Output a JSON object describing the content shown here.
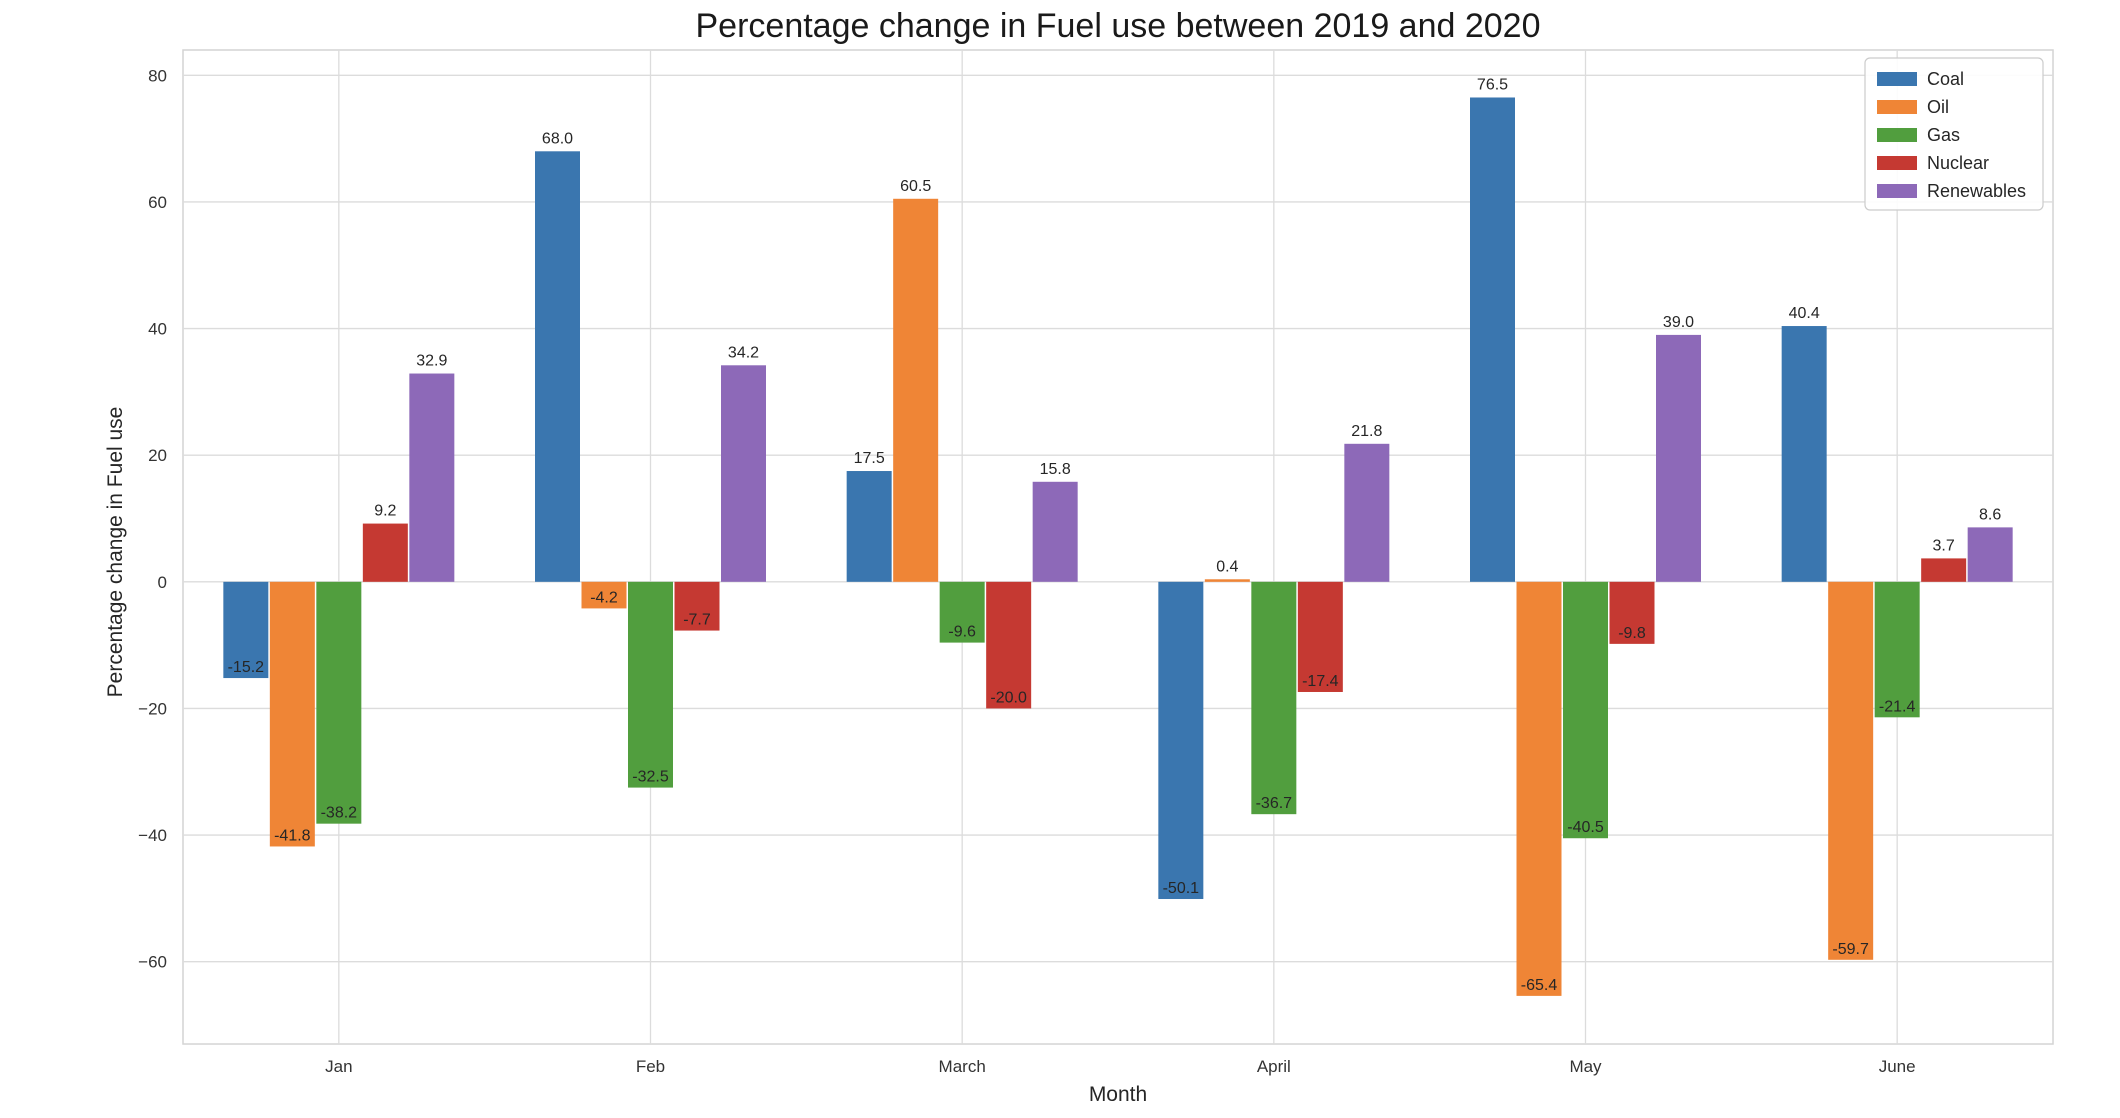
{
  "chart_data": {
    "type": "bar",
    "title": "Percentage change in Fuel use between 2019 and 2020",
    "xlabel": "Month",
    "ylabel": "Percentage change in Fuel use",
    "categories": [
      "Jan",
      "Feb",
      "March",
      "April",
      "May",
      "June"
    ],
    "ylim": [
      -73,
      84
    ],
    "yticks": [
      80,
      60,
      40,
      20,
      0,
      -20,
      -40,
      -60
    ],
    "grid": true,
    "legend_position": "top-right",
    "series": [
      {
        "name": "Coal",
        "color": "#3a76af",
        "values": [
          -15.2,
          68.0,
          17.5,
          -50.1,
          76.5,
          40.4
        ]
      },
      {
        "name": "Oil",
        "color": "#ef8536",
        "values": [
          -41.8,
          -4.2,
          60.5,
          0.4,
          -65.4,
          -59.7
        ]
      },
      {
        "name": "Gas",
        "color": "#519e3e",
        "values": [
          -38.2,
          -32.5,
          -9.6,
          -36.7,
          -40.5,
          -21.4
        ]
      },
      {
        "name": "Nuclear",
        "color": "#c53932",
        "values": [
          9.2,
          -7.7,
          -20.0,
          -17.4,
          -9.8,
          3.7
        ]
      },
      {
        "name": "Renewables",
        "color": "#8d69b8",
        "values": [
          32.9,
          34.2,
          15.8,
          21.8,
          39.0,
          8.6
        ]
      }
    ]
  }
}
